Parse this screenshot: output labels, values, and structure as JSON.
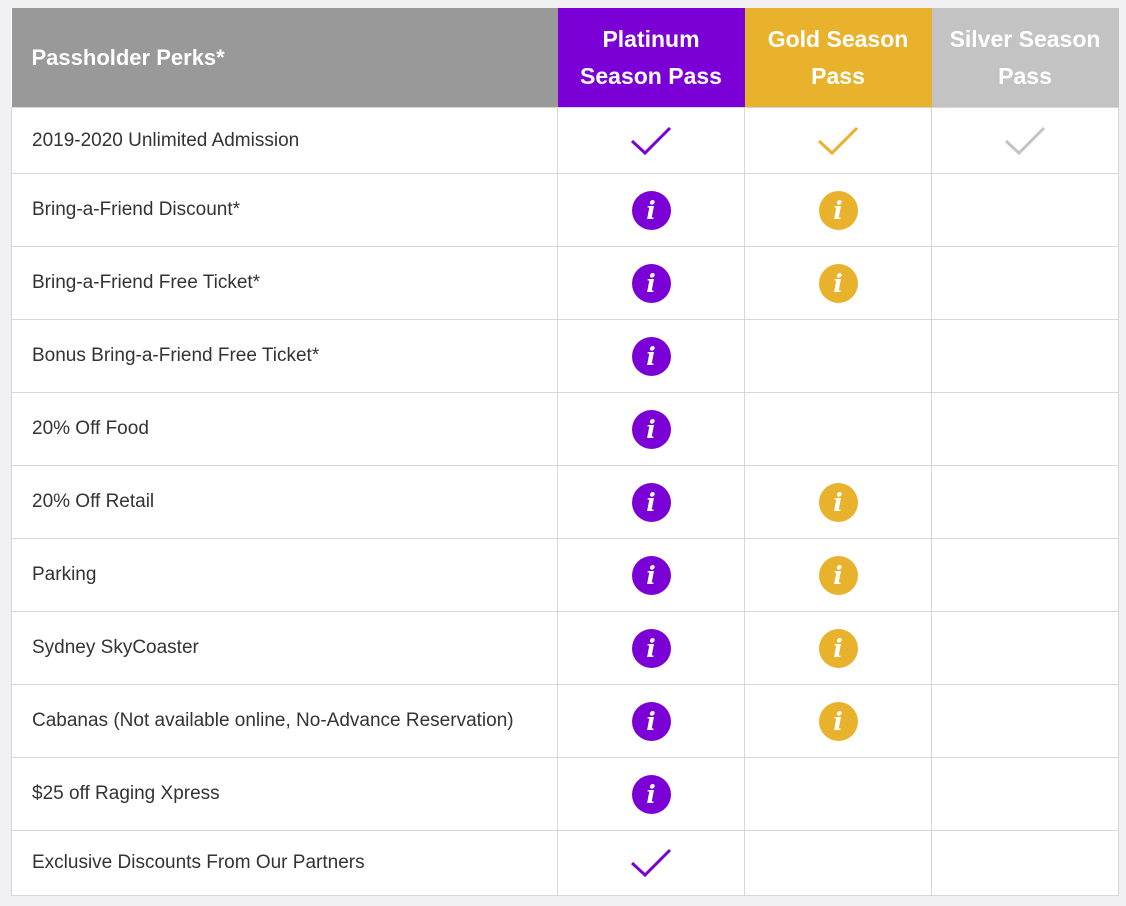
{
  "header": {
    "perks_label": "Passholder Perks*",
    "tiers": [
      {
        "key": "platinum",
        "label": "Platinum Season Pass",
        "color": "#7b00d6"
      },
      {
        "key": "gold",
        "label": "Gold Season Pass",
        "color": "#e8b22c"
      },
      {
        "key": "silver",
        "label": "Silver Season Pass",
        "color": "#c3c3c3"
      }
    ]
  },
  "rows": [
    {
      "perk": "2019-2020 Unlimited Admission",
      "marks": [
        "check-icon",
        "check-icon",
        "check-icon"
      ]
    },
    {
      "perk": "Bring-a-Friend Discount*",
      "marks": [
        "info-icon",
        "info-icon",
        null
      ]
    },
    {
      "perk": "Bring-a-Friend Free Ticket*",
      "marks": [
        "info-icon",
        "info-icon",
        null
      ]
    },
    {
      "perk": "Bonus Bring-a-Friend Free Ticket*",
      "marks": [
        "info-icon",
        null,
        null
      ]
    },
    {
      "perk": "20% Off Food",
      "marks": [
        "info-icon",
        null,
        null
      ]
    },
    {
      "perk": "20% Off Retail",
      "marks": [
        "info-icon",
        "info-icon",
        null
      ]
    },
    {
      "perk": "Parking",
      "marks": [
        "info-icon",
        "info-icon",
        null
      ]
    },
    {
      "perk": "Sydney SkyCoaster",
      "marks": [
        "info-icon",
        "info-icon",
        null
      ]
    },
    {
      "perk": "Cabanas (Not available online, No-Advance Reservation)",
      "marks": [
        "info-icon",
        "info-icon",
        null
      ]
    },
    {
      "perk": "$25 off Raging Xpress",
      "marks": [
        "info-icon",
        null,
        null
      ]
    },
    {
      "perk": "Exclusive Discounts From Our Partners",
      "marks": [
        "check-icon",
        null,
        null
      ]
    }
  ],
  "info_glyph": "i"
}
